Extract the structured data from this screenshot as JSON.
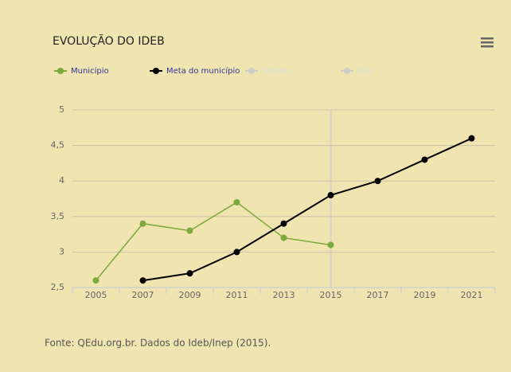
{
  "chart_data": {
    "type": "line",
    "title": "EVOLUÇÃO DO IDEB",
    "source": "Fonte: QEdu.org.br. Dados do Ideb/Inep (2015).",
    "categories": [
      "2005",
      "2007",
      "2009",
      "2011",
      "2013",
      "2015",
      "2017",
      "2019",
      "2021"
    ],
    "series": [
      {
        "name": "Município",
        "color": "#7aa93c",
        "visible": true,
        "values": [
          2.6,
          3.4,
          3.3,
          3.7,
          3.2,
          3.1,
          null,
          null,
          null
        ]
      },
      {
        "name": "Meta do município",
        "color": "#000000",
        "visible": true,
        "values": [
          null,
          2.6,
          2.7,
          3.0,
          3.4,
          3.8,
          4.0,
          4.3,
          4.6
        ]
      },
      {
        "name": "Estado",
        "color": "#cccccc",
        "visible": false,
        "values": [
          null,
          null,
          null,
          null,
          null,
          null,
          null,
          null,
          null
        ]
      },
      {
        "name": "País",
        "color": "#cccccc",
        "visible": false,
        "values": [
          null,
          null,
          null,
          null,
          null,
          null,
          null,
          null,
          null
        ]
      }
    ],
    "ylim": [
      2.5,
      5
    ],
    "yticks": [
      {
        "value": 2.5,
        "label": "2,5"
      },
      3,
      {
        "value": 3.5,
        "label": "3,5"
      },
      4,
      {
        "value": 4.5,
        "label": "4,5"
      },
      5
    ],
    "grid": true
  }
}
